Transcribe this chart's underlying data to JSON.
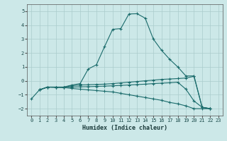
{
  "bg_color": "#cce8e8",
  "grid_color": "#aacccc",
  "line_color": "#1a6b6b",
  "marker_color": "#1a6b6b",
  "xlabel": "Humidex (Indice chaleur)",
  "xlim": [
    -0.5,
    23.5
  ],
  "ylim": [
    -2.5,
    5.5
  ],
  "xticks": [
    0,
    1,
    2,
    3,
    4,
    5,
    6,
    7,
    8,
    9,
    10,
    11,
    12,
    13,
    14,
    15,
    16,
    17,
    18,
    19,
    20,
    21,
    22,
    23
  ],
  "yticks": [
    -2,
    -1,
    0,
    1,
    2,
    3,
    4,
    5
  ],
  "series": [
    {
      "x": [
        1,
        2,
        3,
        4,
        5,
        6,
        7,
        8,
        9,
        10,
        11,
        12,
        13,
        14,
        15,
        16,
        17,
        18,
        19,
        20,
        21,
        22
      ],
      "y": [
        -0.65,
        -0.45,
        -0.45,
        -0.45,
        -0.3,
        -0.2,
        0.85,
        1.15,
        2.45,
        3.7,
        3.75,
        4.8,
        4.82,
        4.5,
        3.0,
        2.2,
        1.55,
        1.0,
        0.35,
        0.35,
        -1.9,
        -2.0
      ]
    },
    {
      "x": [
        1,
        2,
        3,
        4,
        5,
        6,
        7,
        8,
        9,
        10,
        11,
        12,
        13,
        14,
        15,
        16,
        17,
        18,
        19,
        20,
        21,
        22
      ],
      "y": [
        -0.65,
        -0.45,
        -0.45,
        -0.45,
        -0.35,
        -0.3,
        -0.28,
        -0.26,
        -0.24,
        -0.2,
        -0.15,
        -0.1,
        -0.05,
        0.0,
        0.05,
        0.1,
        0.13,
        0.16,
        0.2,
        0.32,
        -1.9,
        -2.0
      ]
    },
    {
      "x": [
        1,
        2,
        3,
        4,
        5,
        6,
        7,
        8,
        9,
        10,
        11,
        12,
        13,
        14,
        15,
        16,
        17,
        18,
        19,
        20,
        21,
        22
      ],
      "y": [
        -0.65,
        -0.45,
        -0.45,
        -0.48,
        -0.45,
        -0.43,
        -0.42,
        -0.4,
        -0.38,
        -0.36,
        -0.33,
        -0.3,
        -0.27,
        -0.24,
        -0.2,
        -0.17,
        -0.14,
        -0.1,
        -0.6,
        -1.45,
        -1.9,
        -2.0
      ]
    },
    {
      "x": [
        0,
        1,
        2,
        3,
        4,
        5,
        6,
        7,
        8,
        9,
        10,
        11,
        12,
        13,
        14,
        15,
        16,
        17,
        18,
        19,
        20,
        21,
        22
      ],
      "y": [
        -1.3,
        -0.65,
        -0.45,
        -0.48,
        -0.48,
        -0.55,
        -0.6,
        -0.65,
        -0.7,
        -0.75,
        -0.8,
        -0.9,
        -1.0,
        -1.1,
        -1.2,
        -1.3,
        -1.4,
        -1.55,
        -1.65,
        -1.8,
        -2.0,
        -2.0,
        -2.0
      ]
    }
  ]
}
